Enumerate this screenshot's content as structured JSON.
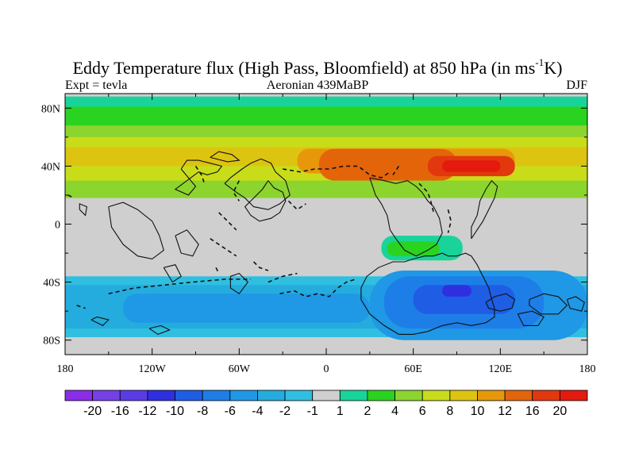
{
  "title": {
    "main_before": "Eddy Temperature flux (High Pass, Bloomfield) at 850 hPa (in ms",
    "superscript": "-1",
    "main_after": "K)"
  },
  "subtitle": {
    "left": "Expt = tevla",
    "center": "Aeronian 439MaBP",
    "right": "DJF"
  },
  "map": {
    "lon_range": [
      -180,
      180
    ],
    "lat_range": [
      -90,
      90
    ],
    "x_ticks": [
      {
        "value": -180,
        "label": "180"
      },
      {
        "value": -120,
        "label": "120W"
      },
      {
        "value": -60,
        "label": "60W"
      },
      {
        "value": 0,
        "label": "0"
      },
      {
        "value": 60,
        "label": "60E"
      },
      {
        "value": 120,
        "label": "120E"
      },
      {
        "value": 180,
        "label": "180"
      }
    ],
    "y_ticks": [
      {
        "value": 80,
        "label": "80N"
      },
      {
        "value": 40,
        "label": "40N"
      },
      {
        "value": 0,
        "label": "0"
      },
      {
        "value": -40,
        "label": "40S"
      },
      {
        "value": -80,
        "label": "80S"
      }
    ],
    "background_color": "#cfcfcf",
    "field_bands": [
      {
        "lon": [
          -180,
          180
        ],
        "lat": [
          52,
          88
        ],
        "level": 1
      },
      {
        "lon": [
          -180,
          180
        ],
        "lat": [
          44,
          81
        ],
        "level": 2
      },
      {
        "lon": [
          -180,
          180
        ],
        "lat": [
          18,
          68
        ],
        "level": 3
      },
      {
        "lon": [
          -180,
          180
        ],
        "lat": [
          30,
          60
        ],
        "level": 4
      },
      {
        "lon": [
          -180,
          180
        ],
        "lat": [
          40,
          53
        ],
        "level": 5
      },
      {
        "lon": [
          -20,
          130
        ],
        "lat": [
          35,
          52
        ],
        "level": 6
      },
      {
        "lon": [
          -5,
          90
        ],
        "lat": [
          30,
          52
        ],
        "level": 7
      },
      {
        "lon": [
          70,
          130
        ],
        "lat": [
          33,
          47
        ],
        "level": 8
      },
      {
        "lon": [
          80,
          120
        ],
        "lat": [
          36,
          44
        ],
        "level": 9
      },
      {
        "lon": [
          38,
          94
        ],
        "lat": [
          -25,
          -8
        ],
        "level": 1
      },
      {
        "lon": [
          42,
          78
        ],
        "lat": [
          -22,
          -12
        ],
        "level": 2
      },
      {
        "lon": [
          -180,
          180
        ],
        "lat": [
          -78,
          -36
        ],
        "level": -1
      },
      {
        "lon": [
          -180,
          180
        ],
        "lat": [
          -72,
          -42
        ],
        "level": -2
      },
      {
        "lon": [
          -140,
          30
        ],
        "lat": [
          -68,
          -48
        ],
        "level": -3
      },
      {
        "lon": [
          30,
          180
        ],
        "lat": [
          -80,
          -32
        ],
        "level": -3
      },
      {
        "lon": [
          40,
          150
        ],
        "lat": [
          -72,
          -36
        ],
        "level": -4
      },
      {
        "lon": [
          60,
          130
        ],
        "lat": [
          -62,
          -42
        ],
        "level": -5
      },
      {
        "lon": [
          80,
          100
        ],
        "lat": [
          -50,
          -42
        ],
        "level": -6
      }
    ],
    "coastlines": [
      [
        [
          -170,
          10
        ],
        [
          -170,
          14
        ],
        [
          -165,
          12
        ],
        [
          -166,
          6
        ],
        [
          -170,
          10
        ]
      ],
      [
        [
          -150,
          12
        ],
        [
          -140,
          15
        ],
        [
          -130,
          10
        ],
        [
          -120,
          2
        ],
        [
          -115,
          -8
        ],
        [
          -112,
          -18
        ],
        [
          -120,
          -24
        ],
        [
          -130,
          -22
        ],
        [
          -140,
          -14
        ],
        [
          -148,
          -2
        ],
        [
          -150,
          12
        ]
      ],
      [
        [
          -100,
          38
        ],
        [
          -96,
          44
        ],
        [
          -88,
          44
        ],
        [
          -80,
          42
        ],
        [
          -72,
          40
        ],
        [
          -75,
          36
        ],
        [
          -82,
          34
        ],
        [
          -88,
          36
        ],
        [
          -96,
          30
        ],
        [
          -104,
          24
        ],
        [
          -95,
          20
        ],
        [
          -90,
          26
        ],
        [
          -100,
          38
        ]
      ],
      [
        [
          -80,
          46
        ],
        [
          -74,
          50
        ],
        [
          -65,
          48
        ],
        [
          -60,
          44
        ],
        [
          -68,
          43
        ],
        [
          -80,
          46
        ]
      ],
      [
        [
          -70,
          28
        ],
        [
          -66,
          32
        ],
        [
          -58,
          38
        ],
        [
          -52,
          42
        ],
        [
          -45,
          45
        ],
        [
          -38,
          42
        ],
        [
          -35,
          36
        ],
        [
          -28,
          30
        ],
        [
          -25,
          20
        ],
        [
          -32,
          14
        ],
        [
          -40,
          10
        ],
        [
          -50,
          12
        ],
        [
          -56,
          18
        ],
        [
          -62,
          22
        ],
        [
          -70,
          28
        ]
      ],
      [
        [
          -40,
          30
        ],
        [
          -36,
          25
        ],
        [
          -30,
          22
        ],
        [
          -28,
          16
        ],
        [
          -32,
          8
        ],
        [
          -38,
          4
        ],
        [
          -46,
          2
        ],
        [
          -52,
          6
        ],
        [
          -56,
          12
        ],
        [
          -50,
          18
        ],
        [
          -44,
          24
        ],
        [
          -40,
          30
        ]
      ],
      [
        [
          -104,
          -8
        ],
        [
          -96,
          -4
        ],
        [
          -88,
          -14
        ],
        [
          -92,
          -22
        ],
        [
          -100,
          -20
        ],
        [
          -104,
          -8
        ]
      ],
      [
        [
          -112,
          -30
        ],
        [
          -104,
          -28
        ],
        [
          -100,
          -36
        ],
        [
          -106,
          -40
        ],
        [
          -112,
          -30
        ]
      ],
      [
        [
          -66,
          -36
        ],
        [
          -60,
          -34
        ],
        [
          -54,
          -40
        ],
        [
          -60,
          -48
        ],
        [
          -66,
          -44
        ],
        [
          -66,
          -36
        ]
      ],
      [
        [
          30,
          32
        ],
        [
          40,
          30
        ],
        [
          48,
          28
        ],
        [
          56,
          30
        ],
        [
          62,
          26
        ],
        [
          66,
          22
        ],
        [
          70,
          16
        ],
        [
          74,
          12
        ],
        [
          78,
          4
        ],
        [
          80,
          -6
        ],
        [
          76,
          -14
        ],
        [
          70,
          -18
        ],
        [
          62,
          -22
        ],
        [
          54,
          -18
        ],
        [
          48,
          -10
        ],
        [
          44,
          -4
        ],
        [
          42,
          6
        ],
        [
          38,
          14
        ],
        [
          34,
          20
        ],
        [
          32,
          26
        ],
        [
          30,
          32
        ]
      ],
      [
        [
          60,
          -24
        ],
        [
          68,
          -22
        ],
        [
          74,
          -22
        ],
        [
          80,
          -20
        ],
        [
          84,
          -22
        ],
        [
          90,
          -22
        ],
        [
          96,
          -20
        ],
        [
          100,
          -22
        ],
        [
          104,
          -28
        ],
        [
          108,
          -36
        ],
        [
          112,
          -44
        ],
        [
          114,
          -52
        ],
        [
          116,
          -58
        ],
        [
          116,
          -64
        ],
        [
          110,
          -68
        ],
        [
          100,
          -70
        ],
        [
          90,
          -68
        ],
        [
          80,
          -70
        ],
        [
          70,
          -74
        ],
        [
          60,
          -76
        ],
        [
          50,
          -76
        ],
        [
          40,
          -70
        ],
        [
          30,
          -62
        ],
        [
          24,
          -52
        ],
        [
          24,
          -44
        ],
        [
          28,
          -36
        ],
        [
          36,
          -30
        ],
        [
          46,
          -26
        ],
        [
          54,
          -26
        ],
        [
          60,
          -24
        ]
      ],
      [
        [
          100,
          -10
        ],
        [
          104,
          -4
        ],
        [
          108,
          2
        ],
        [
          112,
          10
        ],
        [
          116,
          18
        ],
        [
          118,
          26
        ],
        [
          114,
          30
        ],
        [
          110,
          24
        ],
        [
          106,
          16
        ],
        [
          104,
          6
        ],
        [
          100,
          -2
        ],
        [
          100,
          -10
        ]
      ],
      [
        [
          110,
          -54
        ],
        [
          116,
          -50
        ],
        [
          124,
          -48
        ],
        [
          130,
          -52
        ],
        [
          128,
          -58
        ],
        [
          120,
          -60
        ],
        [
          112,
          -58
        ],
        [
          110,
          -54
        ]
      ],
      [
        [
          140,
          -52
        ],
        [
          150,
          -48
        ],
        [
          160,
          -50
        ],
        [
          166,
          -56
        ],
        [
          160,
          -62
        ],
        [
          148,
          -62
        ],
        [
          140,
          -56
        ],
        [
          140,
          -52
        ]
      ],
      [
        [
          132,
          -62
        ],
        [
          142,
          -60
        ],
        [
          150,
          -64
        ],
        [
          146,
          -70
        ],
        [
          136,
          -70
        ],
        [
          132,
          -62
        ]
      ],
      [
        [
          166,
          -52
        ],
        [
          172,
          -50
        ],
        [
          178,
          -54
        ],
        [
          176,
          -60
        ],
        [
          168,
          -58
        ],
        [
          166,
          -52
        ]
      ],
      [
        [
          -162,
          -66
        ],
        [
          -158,
          -64
        ],
        [
          -150,
          -66
        ],
        [
          -154,
          -70
        ],
        [
          -162,
          -66
        ]
      ],
      [
        [
          -122,
          -72
        ],
        [
          -114,
          -70
        ],
        [
          -108,
          -73
        ],
        [
          -116,
          -76
        ],
        [
          -122,
          -72
        ]
      ]
    ],
    "dashed_coastlines": [
      [
        [
          -150,
          -48
        ],
        [
          -132,
          -44
        ],
        [
          -112,
          -42
        ],
        [
          -92,
          -40
        ],
        [
          -70,
          -38
        ],
        [
          -52,
          -38
        ]
      ],
      [
        [
          -30,
          38
        ],
        [
          -18,
          36
        ],
        [
          -8,
          38
        ],
        [
          2,
          38
        ],
        [
          12,
          40
        ],
        [
          22,
          40
        ],
        [
          30,
          34
        ],
        [
          38,
          32
        ],
        [
          44,
          36
        ]
      ],
      [
        [
          -40,
          -40
        ],
        [
          -30,
          -36
        ],
        [
          -20,
          -34
        ]
      ],
      [
        [
          -32,
          -48
        ],
        [
          -22,
          -46
        ],
        [
          -14,
          -50
        ],
        [
          -6,
          -48
        ],
        [
          2,
          -50
        ],
        [
          8,
          -44
        ],
        [
          14,
          -40
        ],
        [
          20,
          -38
        ]
      ],
      [
        [
          -90,
          40
        ],
        [
          -86,
          34
        ],
        [
          -84,
          28
        ]
      ],
      [
        [
          -60,
          30
        ],
        [
          -64,
          22
        ],
        [
          -60,
          16
        ]
      ],
      [
        [
          -26,
          16
        ],
        [
          -20,
          10
        ],
        [
          -14,
          14
        ]
      ],
      [
        [
          -74,
          8
        ],
        [
          -70,
          4
        ],
        [
          -66,
          0
        ],
        [
          -62,
          -4
        ]
      ],
      [
        [
          -80,
          -10
        ],
        [
          -74,
          -14
        ],
        [
          -68,
          -18
        ],
        [
          -62,
          -22
        ]
      ],
      [
        [
          64,
          28
        ],
        [
          70,
          22
        ],
        [
          72,
          16
        ],
        [
          74,
          8
        ]
      ],
      [
        [
          50,
          40
        ],
        [
          46,
          34
        ]
      ],
      [
        [
          84,
          10
        ],
        [
          86,
          2
        ],
        [
          84,
          -6
        ]
      ],
      [
        [
          -178,
          20
        ],
        [
          -174,
          18
        ]
      ],
      [
        [
          -172,
          -56
        ],
        [
          -166,
          -58
        ]
      ],
      [
        [
          -76,
          -30
        ],
        [
          -74,
          -34
        ]
      ],
      [
        [
          -50,
          -26
        ],
        [
          -46,
          -30
        ],
        [
          -40,
          -32
        ]
      ]
    ]
  },
  "colorbar": {
    "labels": [
      "-20",
      "-16",
      "-12",
      "-10",
      "-8",
      "-6",
      "-4",
      "-2",
      "-1",
      "1",
      "2",
      "4",
      "6",
      "8",
      "10",
      "12",
      "16",
      "20"
    ],
    "colors": [
      "#8a2ce8",
      "#7640e8",
      "#5a3ce6",
      "#2f2fe0",
      "#1f5de4",
      "#1e7ee8",
      "#1f98e6",
      "#24acde",
      "#30bfe0",
      "#cfcfcf",
      "#18d49a",
      "#2ad320",
      "#8cd42e",
      "#c9dc1a",
      "#ddc410",
      "#e7980a",
      "#e4640a",
      "#e2380e",
      "#e41a0e"
    ]
  }
}
